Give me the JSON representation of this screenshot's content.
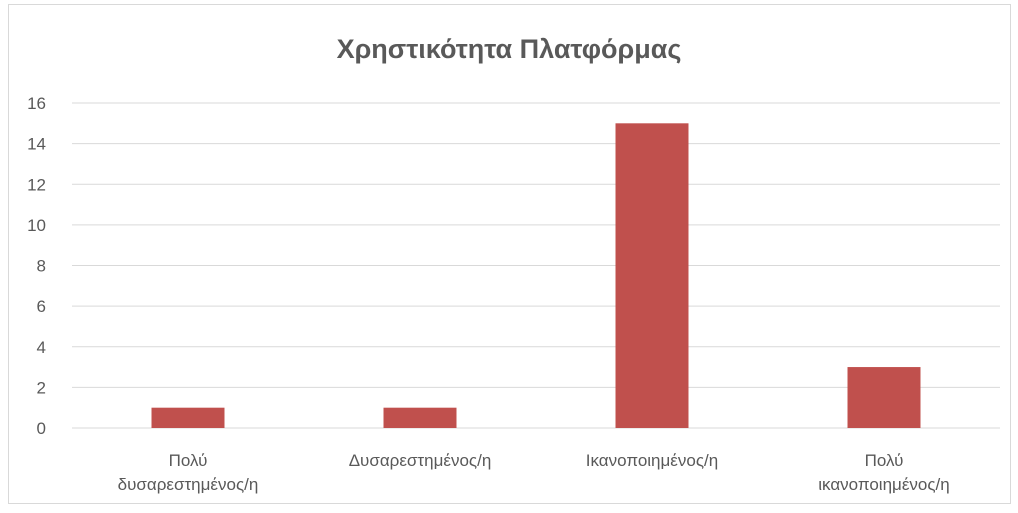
{
  "chart_data": {
    "type": "bar",
    "title": "Χρηστικότητα Πλατφόρμας",
    "categories": [
      [
        "Πολύ",
        "δυσαρεστημένος/η"
      ],
      [
        "Δυσαρεστημένος/η"
      ],
      [
        "Ικανοποιημένος/η"
      ],
      [
        "Πολύ",
        "ικανοποιημένος/η"
      ]
    ],
    "values": [
      1,
      1,
      15,
      3
    ],
    "ylim": [
      0,
      16
    ],
    "yticks": [
      "0",
      "2",
      "4",
      "6",
      "8",
      "10",
      "12",
      "14",
      "16"
    ],
    "grid": true,
    "legend": "none",
    "colors": {
      "bar": "#c0504d",
      "grid": "#d9d9d9",
      "text": "#595959"
    }
  }
}
